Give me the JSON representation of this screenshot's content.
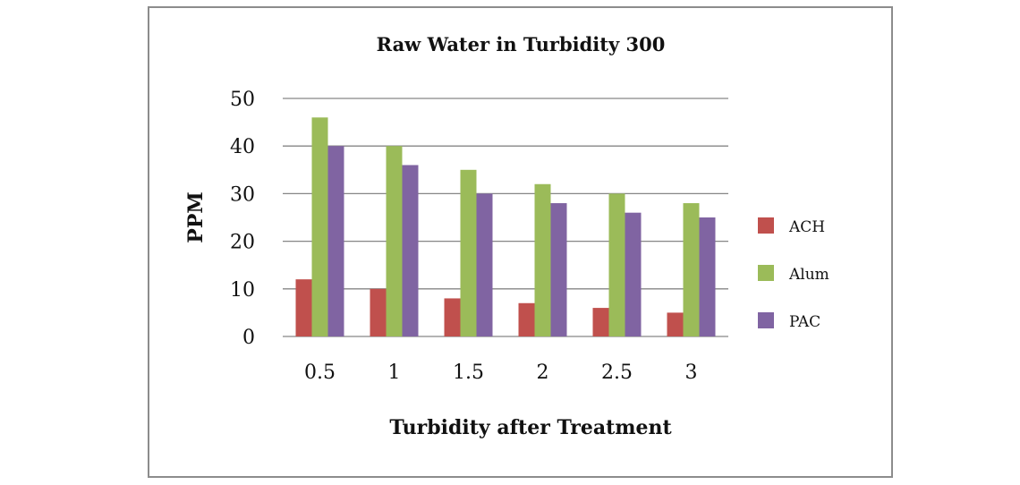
{
  "chart_data": {
    "type": "bar",
    "title": "Raw Water in Turbidity 300",
    "xlabel": "Turbidity after Treatment",
    "ylabel": "PPM",
    "categories": [
      "0.5",
      "1",
      "1.5",
      "2",
      "2.5",
      "3"
    ],
    "ylim": [
      0,
      50
    ],
    "yticks": [
      0,
      10,
      20,
      30,
      40,
      50
    ],
    "grid": true,
    "legend_position": "right",
    "series": [
      {
        "name": "ACH",
        "color": "#c0504d",
        "values": [
          12,
          10,
          8,
          7,
          6,
          5
        ]
      },
      {
        "name": "Alum",
        "color": "#9bbb59",
        "values": [
          46,
          40,
          35,
          32,
          30,
          28
        ]
      },
      {
        "name": "PAC",
        "color": "#8064a2",
        "values": [
          40,
          36,
          30,
          28,
          26,
          25
        ]
      }
    ]
  }
}
